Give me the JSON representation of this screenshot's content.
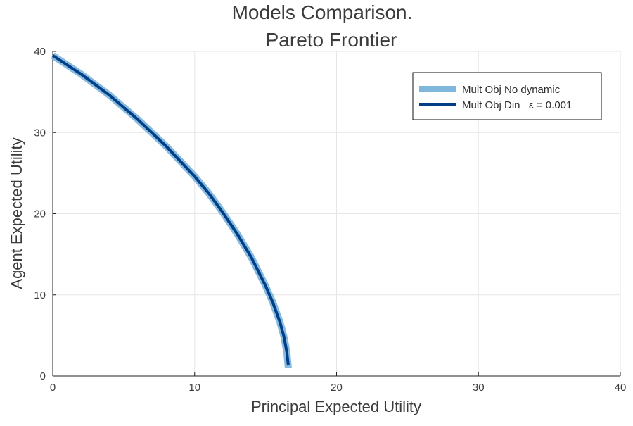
{
  "chart_data": {
    "type": "line",
    "title": [
      "Models Comparison.",
      "Pareto Frontier"
    ],
    "xlabel": "Principal Expected Utility",
    "ylabel": "Agent Expected Utility",
    "xlim": [
      0,
      40
    ],
    "ylim": [
      0,
      40
    ],
    "xticks": [
      0,
      10,
      20,
      30,
      40
    ],
    "yticks": [
      0,
      10,
      20,
      30,
      40
    ],
    "grid": true,
    "legend_position": "top-right",
    "series": [
      {
        "name": "Mult Obj No dynamic",
        "color": "#7fb6dc",
        "x": [
          0,
          2,
          4,
          6,
          8,
          10,
          11,
          12,
          13,
          14,
          15,
          15.5,
          16,
          16.3,
          16.5,
          16.6
        ],
        "y": [
          39.5,
          37.2,
          34.6,
          31.6,
          28.3,
          24.6,
          22.5,
          20.1,
          17.5,
          14.6,
          11.1,
          9.1,
          6.7,
          4.8,
          2.9,
          1
        ]
      },
      {
        "name": "Mult Obj Din   ε = 0.001",
        "color": "#003e87",
        "x": [
          0,
          2,
          4,
          6,
          8,
          10,
          11,
          12,
          13,
          14,
          15,
          15.5,
          16,
          16.3,
          16.5,
          16.6
        ],
        "y": [
          39.5,
          37.2,
          34.6,
          31.6,
          28.3,
          24.6,
          22.5,
          20.1,
          17.5,
          14.6,
          11.1,
          9.1,
          6.7,
          4.8,
          2.9,
          1.3
        ]
      }
    ]
  }
}
